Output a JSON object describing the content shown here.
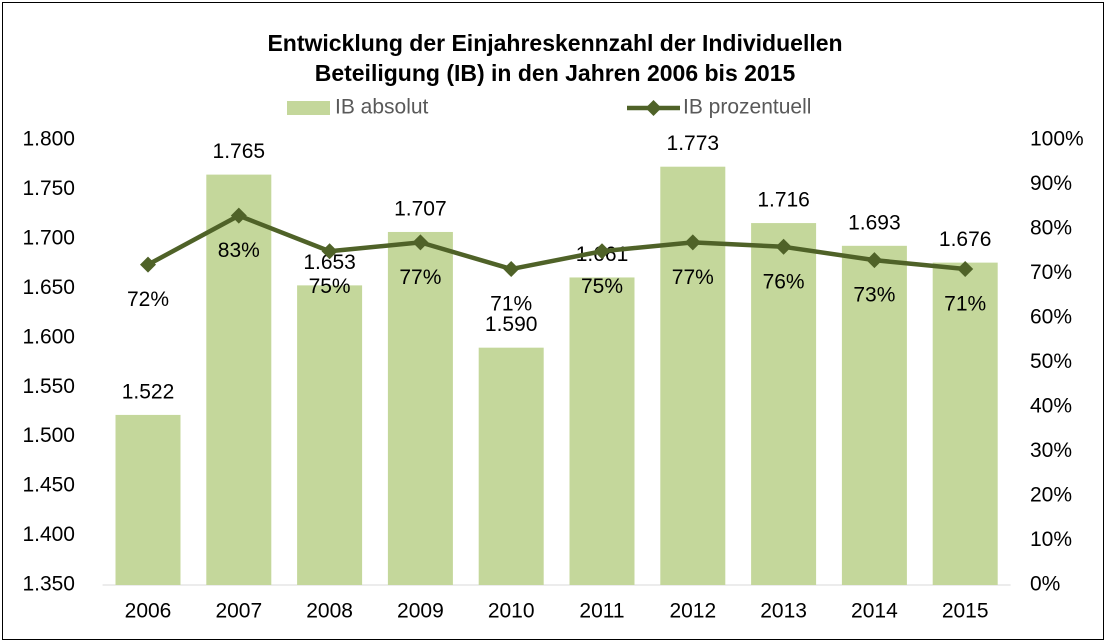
{
  "chart_data": {
    "type": "bar-line",
    "title": "Entwicklung der Einjahreskennzahl der Individuellen",
    "subtitle": "Beteiligung (IB) in den Jahren 2006 bis 2015",
    "categories": [
      "2006",
      "2007",
      "2008",
      "2009",
      "2010",
      "2011",
      "2012",
      "2013",
      "2014",
      "2015"
    ],
    "series": [
      {
        "name": "IB absolut",
        "type": "bar",
        "color": "#c4d79b",
        "axis": "y",
        "values": [
          1522,
          1765,
          1653,
          1707,
          1590,
          1661,
          1773,
          1716,
          1693,
          1676
        ],
        "value_labels": [
          "1.522",
          "1.765",
          "1.653",
          "1.707",
          "1.590",
          "1.661",
          "1.773",
          "1.716",
          "1.693",
          "1.676"
        ]
      },
      {
        "name": "IB prozentuell",
        "type": "line",
        "color": "#4f6228",
        "axis": "y2",
        "values": [
          72,
          83,
          75,
          77,
          71,
          75,
          77,
          76,
          73,
          71
        ],
        "value_labels": [
          "72%",
          "83%",
          "75%",
          "77%",
          "71%",
          "75%",
          "77%",
          "76%",
          "73%",
          "71%"
        ]
      }
    ],
    "ylim": [
      1350,
      1800
    ],
    "yticks": [
      {
        "value": 1350,
        "label": "1.350"
      },
      {
        "value": 1400,
        "label": "1.400"
      },
      {
        "value": 1450,
        "label": "1.450"
      },
      {
        "value": 1500,
        "label": "1.500"
      },
      {
        "value": 1550,
        "label": "1.550"
      },
      {
        "value": 1600,
        "label": "1.600"
      },
      {
        "value": 1650,
        "label": "1.650"
      },
      {
        "value": 1700,
        "label": "1.700"
      },
      {
        "value": 1750,
        "label": "1.750"
      },
      {
        "value": 1800,
        "label": "1.800"
      }
    ],
    "y2lim": [
      0,
      100
    ],
    "y2ticks": [
      {
        "value": 0,
        "label": "0%"
      },
      {
        "value": 10,
        "label": "10%"
      },
      {
        "value": 20,
        "label": "20%"
      },
      {
        "value": 30,
        "label": "30%"
      },
      {
        "value": 40,
        "label": "40%"
      },
      {
        "value": 50,
        "label": "50%"
      },
      {
        "value": 60,
        "label": "60%"
      },
      {
        "value": 70,
        "label": "70%"
      },
      {
        "value": 80,
        "label": "80%"
      },
      {
        "value": 90,
        "label": "90%"
      },
      {
        "value": 100,
        "label": "100%"
      }
    ],
    "legend": "top",
    "grid": false
  }
}
